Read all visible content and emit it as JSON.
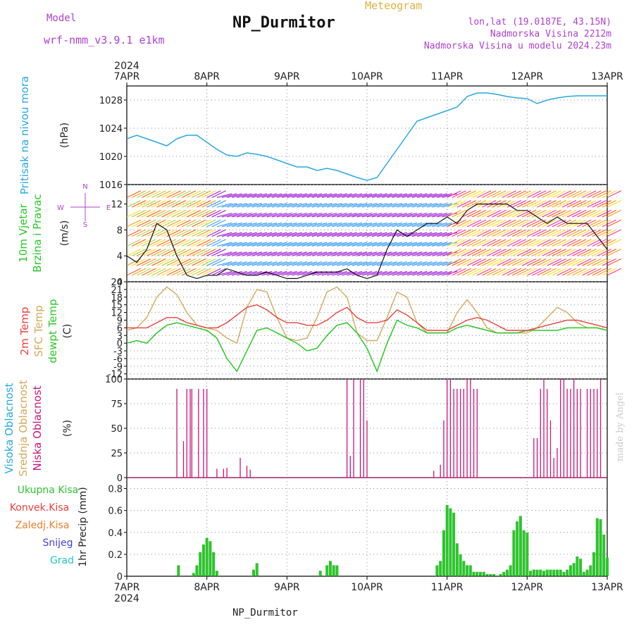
{
  "header": {
    "model_label": "Model",
    "model_value": "wrf-nmm_v3.9.1 e1km",
    "title": "NP_Durmitor",
    "chart_name": "Meteogram",
    "lonlat": "lon,lat (19.0187E, 43.15N)",
    "altitude": "Nadmorska Visina 2212m",
    "model_altitude": "Nadmorska Visina u modelu 2024.23m",
    "footer": "NP_Durmitor",
    "credit": "made by Angel"
  },
  "colors": {
    "pressure": "#29a8e0",
    "temp": "#e8413c",
    "sfc": "#d4a85a",
    "dew": "#28c828",
    "cloud": "#c8177a",
    "precip": "#2ec42e",
    "mid_cloud": "#d4a85a",
    "high_cloud": "#29a8e0",
    "wind_label": "#b040d0",
    "title_gold": "#e0b040"
  },
  "chart_data": [
    {
      "type": "line",
      "panel": "pressure",
      "ylabel_name": "Pritisak na nivou mora",
      "ylabel_unit": "(hPa)",
      "x_ticks": [
        "7APR",
        "8APR",
        "9APR",
        "10APR",
        "11APR",
        "12APR",
        "13APR"
      ],
      "year": "2024",
      "ylim": [
        1016,
        1030
      ],
      "yticks": [
        "1016",
        "1020",
        "1024",
        "1028"
      ],
      "series": [
        {
          "x": [
            0,
            3,
            6,
            9,
            12,
            15,
            18,
            21,
            24,
            27,
            30,
            33,
            36,
            39,
            42,
            45,
            48,
            51,
            54,
            57,
            60,
            63,
            66,
            69,
            72,
            75,
            78,
            81,
            84,
            87,
            90,
            93,
            96,
            99,
            102,
            105,
            108,
            111,
            114,
            117,
            120,
            123,
            126,
            129,
            132,
            135,
            138,
            141,
            144
          ],
          "values": [
            1022.5,
            1023,
            1022.5,
            1022,
            1021.5,
            1022.5,
            1023,
            1023,
            1022,
            1021,
            1020.2,
            1020,
            1020.5,
            1020.3,
            1020,
            1019.5,
            1019,
            1018.5,
            1018.5,
            1018,
            1018.3,
            1018,
            1017.5,
            1017,
            1016.6,
            1017,
            1019,
            1021,
            1023,
            1025,
            1025.5,
            1026,
            1026.5,
            1027,
            1028.5,
            1029,
            1029,
            1028.8,
            1028.5,
            1028.3,
            1028.2,
            1027.5,
            1028,
            1028.3,
            1028.5,
            1028.6,
            1028.6,
            1028.6,
            1028.6
          ]
        }
      ]
    },
    {
      "type": "line",
      "panel": "wind",
      "ylabel_name": "10m Vjetar",
      "ylabel_name2": "Brzina i Pravac",
      "ylabel_unit": "(m/s)",
      "compass": {
        "n": "N",
        "w": "W",
        "e": "E",
        "s": "S"
      },
      "ylim": [
        0,
        15
      ],
      "yticks": [
        "0",
        "4",
        "8",
        "12"
      ],
      "series": [
        {
          "name": "speed",
          "x": [
            0,
            3,
            6,
            9,
            12,
            15,
            18,
            21,
            24,
            27,
            30,
            33,
            36,
            39,
            42,
            45,
            48,
            51,
            54,
            57,
            60,
            63,
            66,
            69,
            72,
            75,
            78,
            81,
            84,
            87,
            90,
            93,
            96,
            99,
            102,
            105,
            108,
            111,
            114,
            117,
            120,
            123,
            126,
            129,
            132,
            135,
            138,
            141,
            144
          ],
          "values": [
            4,
            3,
            5,
            9,
            8,
            4,
            1,
            0.5,
            1,
            1,
            2,
            1.5,
            1,
            1,
            1.5,
            1,
            0.5,
            0.5,
            1,
            1.5,
            1.5,
            1.5,
            2,
            1,
            0.5,
            1,
            5,
            8,
            7,
            8,
            9,
            9,
            10,
            9,
            11,
            12,
            12,
            12,
            12,
            11,
            11,
            10,
            9,
            10,
            9,
            9,
            9,
            7,
            5
          ]
        }
      ]
    },
    {
      "type": "line",
      "panel": "temperature",
      "ylabel_temp": "2m Temp",
      "ylabel_sfc": "SFC Temp",
      "ylabel_dew": "dewpt Temp",
      "ylabel_unit": "(C)",
      "ylim": [
        -14,
        24
      ],
      "yticks": [
        "-12",
        "-9",
        "-6",
        "-3",
        "0",
        "3",
        "6",
        "9",
        "12",
        "15",
        "18",
        "21",
        "24"
      ],
      "series": [
        {
          "name": "2m Temp",
          "x": [
            0,
            3,
            6,
            9,
            12,
            15,
            18,
            21,
            24,
            27,
            30,
            33,
            36,
            39,
            42,
            45,
            48,
            51,
            54,
            57,
            60,
            63,
            66,
            69,
            72,
            75,
            78,
            81,
            84,
            87,
            90,
            93,
            96,
            99,
            102,
            105,
            108,
            111,
            114,
            117,
            120,
            123,
            126,
            129,
            132,
            135,
            138,
            141,
            144
          ],
          "values": [
            6,
            6,
            6,
            8,
            10,
            10,
            8,
            7,
            6,
            6,
            8,
            11,
            14,
            15,
            13,
            10,
            8,
            8,
            7,
            7,
            9,
            12,
            14,
            10,
            8,
            8,
            9,
            13,
            11,
            8,
            5,
            5,
            5,
            7,
            9,
            10,
            9,
            7,
            5,
            5,
            5,
            6,
            7,
            8,
            9,
            9,
            8,
            7,
            6
          ]
        },
        {
          "name": "SFC Temp",
          "x": [
            0,
            3,
            6,
            9,
            12,
            15,
            18,
            21,
            24,
            27,
            30,
            33,
            36,
            39,
            42,
            45,
            48,
            51,
            54,
            57,
            60,
            63,
            66,
            69,
            72,
            75,
            78,
            81,
            84,
            87,
            90,
            93,
            96,
            99,
            102,
            105,
            108,
            111,
            114,
            117,
            120,
            123,
            126,
            129,
            132,
            135,
            138,
            141,
            144
          ],
          "values": [
            5,
            6,
            10,
            18,
            22,
            19,
            12,
            7,
            6,
            5,
            2,
            0,
            14,
            21,
            20,
            10,
            2,
            1,
            2,
            10,
            20,
            22,
            18,
            4,
            1,
            1,
            10,
            20,
            18,
            8,
            4,
            4,
            4,
            12,
            17,
            12,
            6,
            4,
            4,
            4,
            4,
            6,
            10,
            14,
            12,
            8,
            6,
            6,
            5
          ]
        },
        {
          "name": "dewpt Temp",
          "x": [
            0,
            3,
            6,
            9,
            12,
            15,
            18,
            21,
            24,
            27,
            30,
            33,
            36,
            39,
            42,
            45,
            48,
            51,
            54,
            57,
            60,
            63,
            66,
            69,
            72,
            75,
            78,
            81,
            84,
            87,
            90,
            93,
            96,
            99,
            102,
            105,
            108,
            111,
            114,
            117,
            120,
            123,
            126,
            129,
            132,
            135,
            138,
            141,
            144
          ],
          "values": [
            0,
            1,
            0,
            4,
            7,
            8,
            7,
            6,
            5,
            2,
            -6,
            -11,
            -3,
            5,
            6,
            4,
            2,
            0,
            -3,
            -2,
            3,
            7,
            8,
            4,
            -2,
            -11,
            0,
            9,
            7,
            6,
            4,
            4,
            4,
            6,
            7,
            6,
            5,
            4,
            4,
            4,
            5,
            5,
            5,
            5,
            6,
            6,
            6,
            6,
            5
          ]
        }
      ]
    },
    {
      "type": "bar",
      "panel": "clouds",
      "ylabel_high": "Visoka Oblacnost",
      "ylabel_mid": "Srednja Oblacnost",
      "ylabel_low": "Niska Oblacnost",
      "ylabel_unit": "(%)",
      "ylim": [
        0,
        100
      ],
      "yticks": [
        "0",
        "25",
        "50",
        "75",
        "100"
      ],
      "series": [
        {
          "name": "Niska Oblacnost",
          "x": [
            15,
            17,
            18,
            19,
            19.5,
            21.5,
            23,
            24,
            27,
            29,
            30,
            34,
            36,
            37,
            39,
            66,
            67,
            68,
            70,
            71,
            72,
            92,
            94,
            95,
            96,
            97,
            98,
            99,
            100,
            101,
            102,
            103,
            104,
            105,
            122,
            123,
            124,
            125,
            126,
            127,
            128,
            129,
            130,
            131,
            132,
            133,
            134,
            135,
            136,
            138,
            139,
            140,
            141,
            142
          ],
          "values": [
            90,
            37,
            90,
            90,
            90,
            90,
            90,
            90,
            9,
            9,
            10,
            20,
            12,
            8,
            0,
            100,
            22,
            100,
            100,
            100,
            58,
            7,
            13,
            58,
            100,
            100,
            90,
            90,
            90,
            90,
            100,
            100,
            90,
            90,
            40,
            40,
            90,
            100,
            90,
            58,
            20,
            30,
            100,
            100,
            90,
            90,
            100,
            90,
            90,
            90,
            90,
            90,
            90,
            100
          ]
        }
      ]
    },
    {
      "type": "bar",
      "panel": "precipitation",
      "legend_total": "Ukupna Kisa",
      "legend_conv": "Konvek.Kisa",
      "legend_frozen": "Zaledj.Kisa",
      "legend_snow": "Snijeg",
      "legend_hail": "Grad",
      "ylabel": "1hr Precip (mm)",
      "ylim": [
        0,
        0.9
      ],
      "yticks": [
        "0",
        "0.2",
        "0.4",
        "0.6",
        "0.8"
      ],
      "series": [
        {
          "name": "Ukupna Kisa",
          "x": [
            15.5,
            20,
            21,
            22,
            23,
            24,
            25,
            26,
            27,
            38,
            39,
            58,
            60,
            61,
            62,
            63,
            93,
            94,
            95,
            96,
            97,
            98,
            99,
            100,
            101,
            102,
            103,
            104,
            105,
            106,
            107,
            108,
            109,
            110,
            112,
            113,
            114,
            115,
            116,
            117,
            118,
            119,
            120,
            121,
            122,
            123,
            124,
            125,
            126,
            127,
            128,
            129,
            130,
            131,
            132,
            133,
            134,
            135,
            136,
            137,
            138,
            139,
            140,
            141,
            142,
            143,
            144
          ],
          "values": [
            0.1,
            0.03,
            0.1,
            0.22,
            0.29,
            0.35,
            0.32,
            0.22,
            0.05,
            0.06,
            0.12,
            0.05,
            0.1,
            0.14,
            0.1,
            0.1,
            0.1,
            0.14,
            0.42,
            0.65,
            0.62,
            0.58,
            0.3,
            0.2,
            0.14,
            0.1,
            0.1,
            0.04,
            0.04,
            0.04,
            0.04,
            0.02,
            0.02,
            0.02,
            0.02,
            0.04,
            0.06,
            0.1,
            0.42,
            0.5,
            0.55,
            0.42,
            0.4,
            0.05,
            0.06,
            0.06,
            0.06,
            0.05,
            0.06,
            0.06,
            0.06,
            0.06,
            0.06,
            0.04,
            0.06,
            0.1,
            0.12,
            0.18,
            0.16,
            0.04,
            0.06,
            0.1,
            0.22,
            0.53,
            0.52,
            0.38,
            0.17
          ]
        }
      ]
    }
  ]
}
